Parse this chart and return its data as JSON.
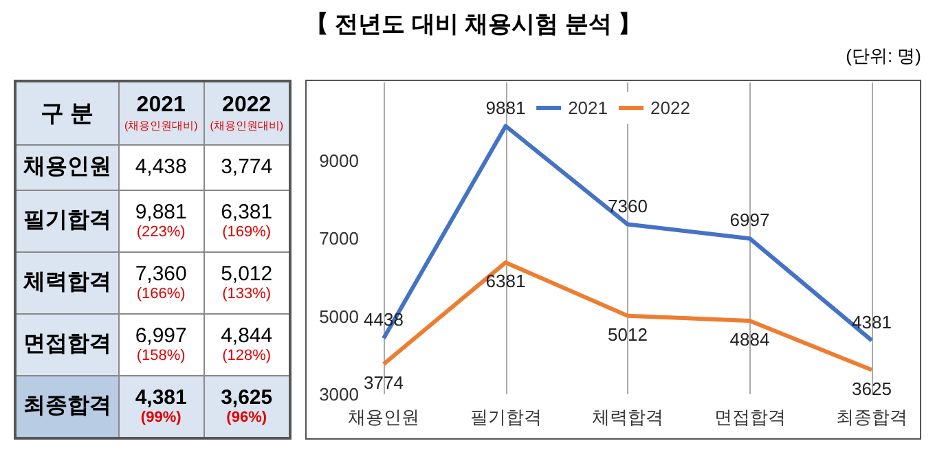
{
  "chart_data": [
    {
      "type": "other",
      "legend_title": "구 분",
      "categories": [
        "채용인원",
        "필기합격",
        "체력합격",
        "면접합격",
        "최종합격"
      ],
      "annotations": [
        "2021\n(채용인원대비)",
        "2022\n(채용인원대비)",
        "4,438",
        "3,774",
        "9,881\n(223%)",
        "6,381\n(169%)",
        "7,360\n(166%)",
        "5,012\n(133%)",
        "6,997\n(158%)",
        "4,844\n(128%)",
        "4,381\n(99%)",
        "3,625\n(96%)"
      ]
    },
    {
      "type": "line",
      "title": "【 전년도 대비 채용시험 분석 】",
      "annotations": [
        "(단위: 명)"
      ],
      "categories": [
        "채용인원",
        "필기합격",
        "체력합격",
        "면접합격",
        "최종합격"
      ],
      "series": [
        {
          "name": "2021",
          "color": "#4472c4",
          "values": [
            4438,
            9881,
            7360,
            6997,
            4381
          ]
        },
        {
          "name": "2022",
          "color": "#ed7d31",
          "values": [
            3774,
            6381,
            5012,
            4884,
            3625
          ]
        }
      ],
      "ylim": [
        3000,
        11000
      ],
      "yticks": [
        3000,
        5000,
        7000,
        9000
      ],
      "grid": "x",
      "legend": "top",
      "data_labels": true,
      "marker": "none"
    }
  ]
}
